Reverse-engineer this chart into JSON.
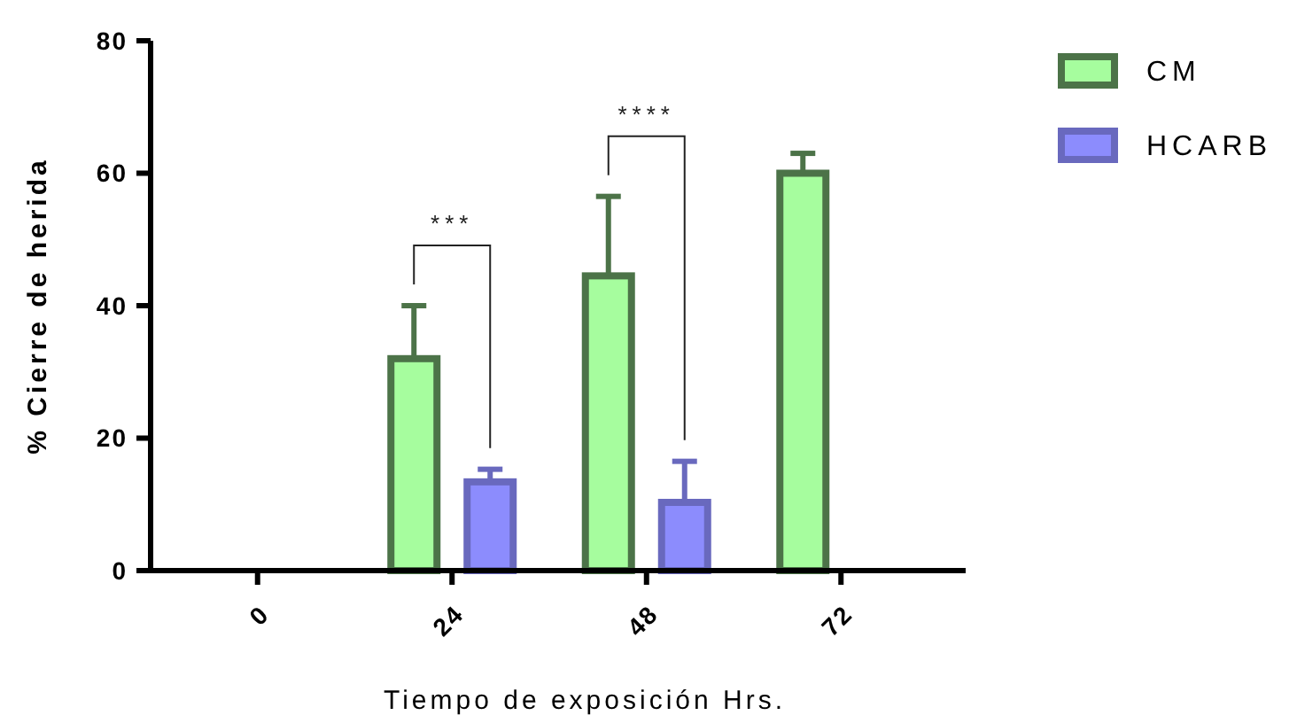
{
  "chart_data": {
    "type": "bar",
    "xlabel": "Tiempo de exposición Hrs.",
    "ylabel": "% Cierre de herida",
    "categories": [
      "0",
      "24",
      "48",
      "72"
    ],
    "series": [
      {
        "name": "CM",
        "color": "#a6fd9e",
        "values": [
          null,
          32,
          44.5,
          60
        ],
        "errors": [
          null,
          [
            32,
            40
          ],
          [
            44.5,
            56.5
          ],
          [
            60,
            63
          ]
        ]
      },
      {
        "name": "HCARB",
        "color": "#8c8cfd",
        "values": [
          null,
          13.4,
          10.3,
          null
        ],
        "errors": [
          null,
          [
            13.4,
            15.3
          ],
          [
            10.3,
            16.5
          ],
          null
        ]
      }
    ],
    "ylim": [
      0,
      80
    ],
    "yticks": [
      0,
      20,
      40,
      60,
      80
    ],
    "grid": false,
    "legend": "top right",
    "annotations": [
      "***",
      "****"
    ]
  }
}
